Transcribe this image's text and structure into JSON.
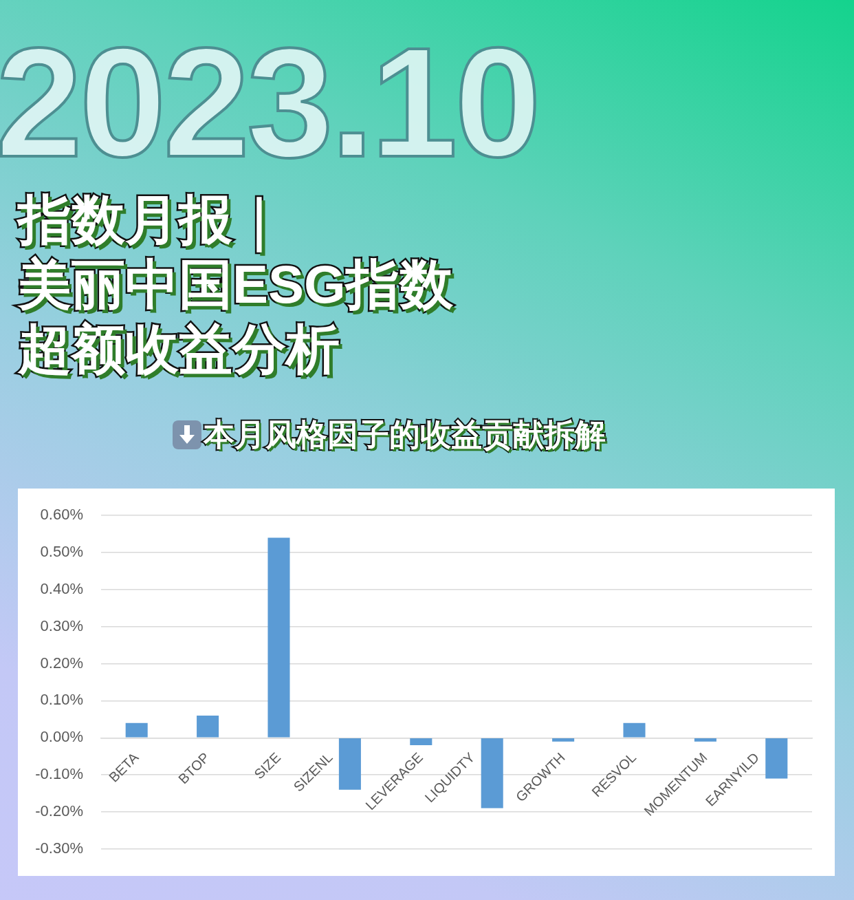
{
  "chart_data": {
    "type": "bar",
    "title": "指数月报｜美丽中国ESG指数超额收益分析",
    "subtitle": "本月风格因子的收益贡献拆解",
    "annotations": [
      "2023.10"
    ],
    "categories": [
      "BETA",
      "BTOP",
      "SIZE",
      "SIZENL",
      "LEVERAGE",
      "LIQUIDTY",
      "GROWTH",
      "RESVOL",
      "MOMENTUM",
      "EARNYILD"
    ],
    "values": [
      0.04,
      0.06,
      0.54,
      -0.14,
      -0.02,
      -0.19,
      -0.01,
      0.04,
      -0.01,
      -0.11
    ],
    "color": "#5b9bd5",
    "ylim": [
      -0.3,
      0.6
    ],
    "yticks": [
      {
        "value": -0.3,
        "label": "-0.30%"
      },
      {
        "value": -0.2,
        "label": "-0.20%"
      },
      {
        "value": -0.1,
        "label": "-0.10%"
      },
      {
        "value": 0,
        "label": "0.00%"
      },
      {
        "value": 0.1,
        "label": "0.10%"
      },
      {
        "value": 0.2,
        "label": "0.20%"
      },
      {
        "value": 0.3,
        "label": "0.30%"
      },
      {
        "value": 0.4,
        "label": "0.40%"
      },
      {
        "value": 0.5,
        "label": "0.50%"
      },
      {
        "value": 0.6,
        "label": "0.60%"
      }
    ],
    "grid": "y"
  }
}
